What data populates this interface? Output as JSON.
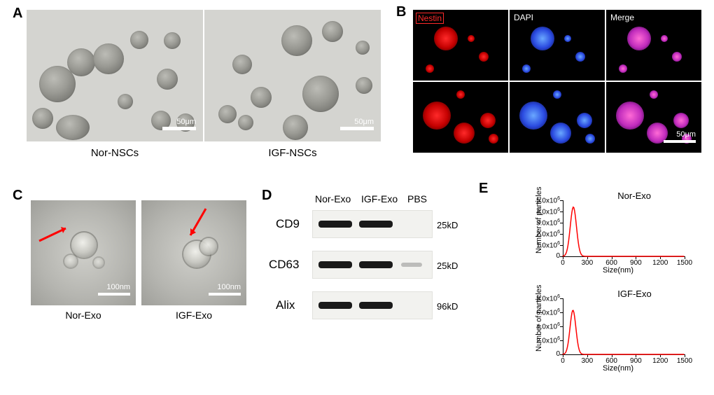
{
  "panel_labels": {
    "A": "A",
    "B": "B",
    "C": "C",
    "D": "D",
    "E": "E"
  },
  "panel_label_fontsize": 20,
  "panelA": {
    "left_caption": "Nor-NSCs",
    "right_caption": "IGF-NSCs",
    "caption_fontsize": 15,
    "scalebar_text": "50μm",
    "background_color": "#d4d4d0"
  },
  "panelB": {
    "labels": {
      "nestin": "Nestin",
      "dapi": "DAPI",
      "merge": "Merge"
    },
    "label_fontsize": 12,
    "scalebar_text": "50μm",
    "colors": {
      "nestin": "#ff1a1a",
      "dapi": "#3a5cff",
      "merge": "#ff55dd",
      "bg": "#000000"
    }
  },
  "panelC": {
    "left_caption": "Nor-Exo",
    "right_caption": "IGF-Exo",
    "caption_fontsize": 14,
    "scalebar_text": "100nm",
    "arrow_color": "#ff0000"
  },
  "panelD": {
    "lanes": [
      "Nor-Exo",
      "IGF-Exo",
      "PBS"
    ],
    "lane_fontsize": 14,
    "rows": [
      {
        "label": "CD9",
        "size": "25kD",
        "bands": [
          true,
          true,
          false
        ]
      },
      {
        "label": "CD63",
        "size": "25kD",
        "bands": [
          true,
          true,
          false
        ],
        "faint_third": true
      },
      {
        "label": "Alix",
        "size": "96kD",
        "bands": [
          true,
          true,
          false
        ]
      }
    ],
    "row_label_fontsize": 17,
    "size_fontsize": 13,
    "strip_bg": "#f2f2ef",
    "band_color": "#1a1a1a"
  },
  "panelE": {
    "charts": [
      {
        "title": "Nor-Exo",
        "line_color": "#ff0000",
        "xlim": [
          0,
          1500
        ],
        "xticks": [
          0,
          300,
          600,
          900,
          1200,
          1500
        ],
        "ylim": [
          0,
          5000000.0
        ],
        "yticks": [
          0,
          1000000.0,
          2000000.0,
          3000000.0,
          4000000.0,
          5000000.0
        ],
        "ytick_labels": [
          "0",
          "1.0x10",
          "2.0x10",
          "3.0x10",
          "4.0x10",
          "5.0x10"
        ],
        "ytick_exp": "6",
        "xlabel": "Size(nm)",
        "ylabel": "Number of particles",
        "peak_x": 130,
        "peak_y": 4400000.0,
        "fwhm": 90
      },
      {
        "title": "IGF-Exo",
        "line_color": "#ff0000",
        "xlim": [
          0,
          1500
        ],
        "xticks": [
          0,
          300,
          600,
          900,
          1200,
          1500
        ],
        "ylim": [
          0,
          8000000.0
        ],
        "yticks": [
          0,
          2000000.0,
          4000000.0,
          6000000.0,
          8000000.0
        ],
        "ytick_labels": [
          "0",
          "2.0x10",
          "4.0x10",
          "6.0x10",
          "8.0x10"
        ],
        "ytick_exp": "6",
        "xlabel": "Size(nm)",
        "ylabel": "Number of particles",
        "peak_x": 125,
        "peak_y": 6300000.0,
        "fwhm": 85
      }
    ],
    "title_fontsize": 13,
    "axis_label_fontsize": 11,
    "tick_fontsize": 10
  }
}
